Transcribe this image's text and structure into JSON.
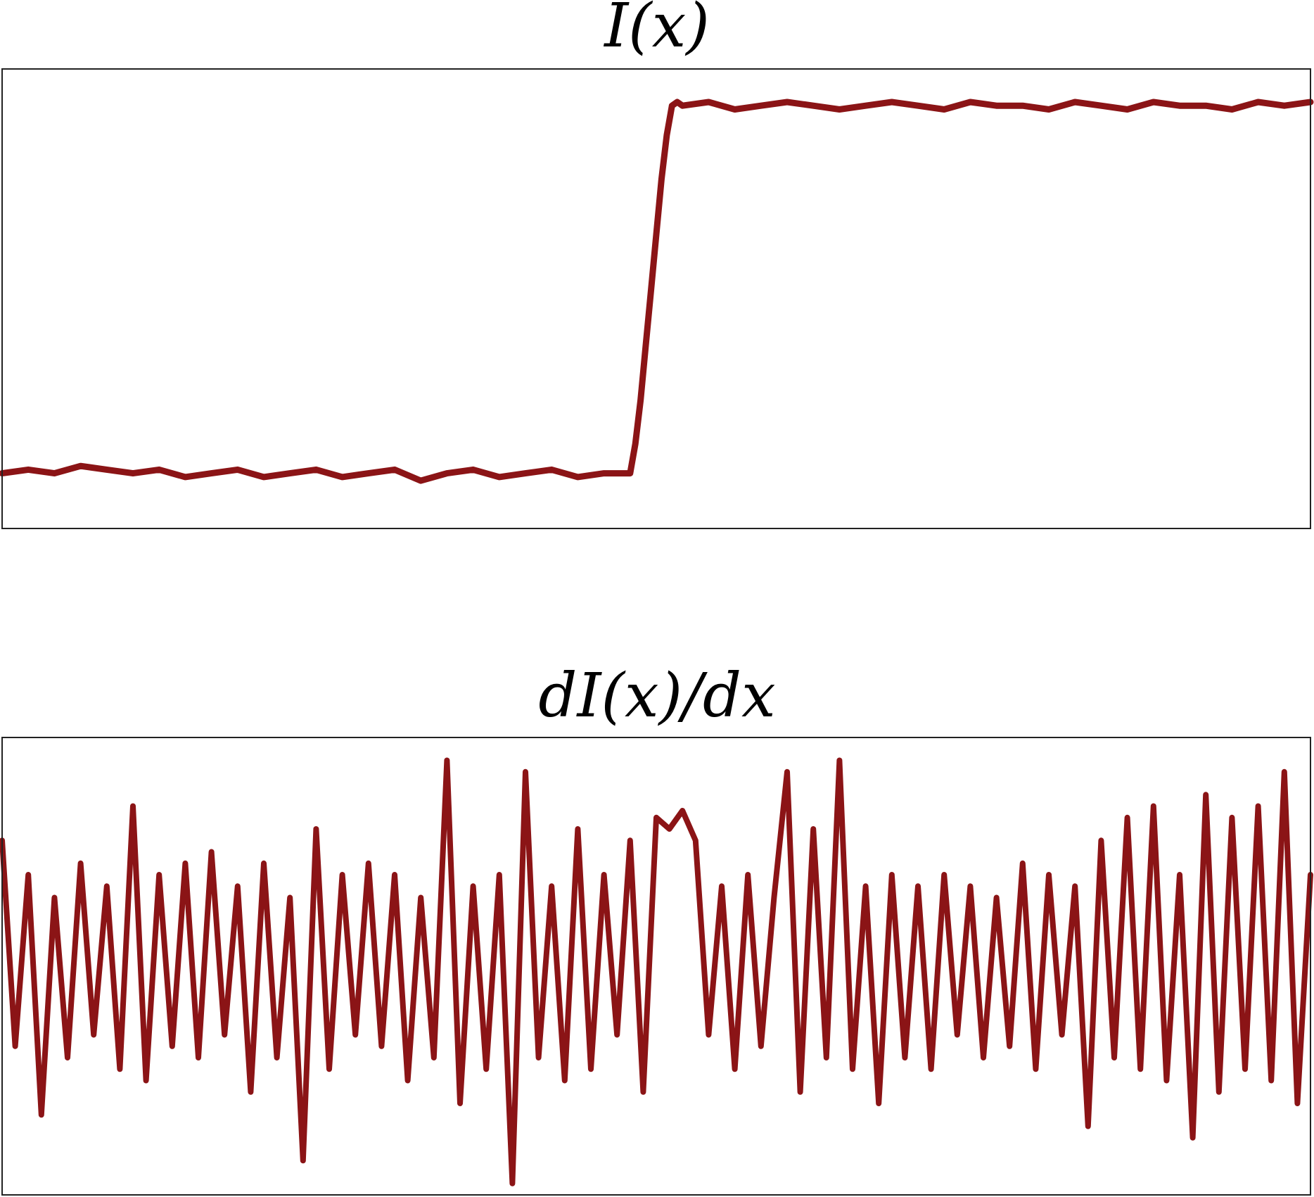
{
  "line_color": "#8b1416",
  "chart_data": [
    {
      "type": "line",
      "title": "I(x)",
      "xlabel": "",
      "ylabel": "",
      "grid": false,
      "xlim": [
        0,
        1
      ],
      "ylim": [
        -0.15,
        1.1
      ],
      "series": [
        {
          "x": [
            0.0,
            0.02,
            0.04,
            0.06,
            0.08,
            0.1,
            0.12,
            0.14,
            0.16,
            0.18,
            0.2,
            0.22,
            0.24,
            0.26,
            0.28,
            0.3,
            0.32,
            0.34,
            0.36,
            0.38,
            0.4,
            0.42,
            0.44,
            0.46,
            0.48,
            0.484,
            0.488,
            0.492,
            0.496,
            0.5,
            0.504,
            0.508,
            0.512,
            0.516,
            0.52,
            0.54,
            0.56,
            0.58,
            0.6,
            0.62,
            0.64,
            0.66,
            0.68,
            0.7,
            0.72,
            0.74,
            0.76,
            0.78,
            0.8,
            0.82,
            0.84,
            0.86,
            0.88,
            0.9,
            0.92,
            0.94,
            0.96,
            0.98,
            1.0
          ],
          "y": [
            0.0,
            0.01,
            0.0,
            0.02,
            0.01,
            0.0,
            0.01,
            -0.01,
            0.0,
            0.01,
            -0.01,
            0.0,
            0.01,
            -0.01,
            0.0,
            0.01,
            -0.02,
            0.0,
            0.01,
            -0.01,
            0.0,
            0.01,
            -0.01,
            0.0,
            0.0,
            0.08,
            0.2,
            0.35,
            0.5,
            0.65,
            0.8,
            0.92,
            1.0,
            1.01,
            1.0,
            1.01,
            0.99,
            1.0,
            1.01,
            1.0,
            0.99,
            1.0,
            1.01,
            1.0,
            0.99,
            1.01,
            1.0,
            1.0,
            0.99,
            1.01,
            1.0,
            0.99,
            1.01,
            1.0,
            1.0,
            0.99,
            1.01,
            1.0,
            1.01
          ]
        }
      ]
    },
    {
      "type": "line",
      "title": "dI(x)/dx",
      "xlabel": "",
      "ylabel": "",
      "grid": false,
      "xlim": [
        0,
        1
      ],
      "ylim": [
        -1.0,
        1.0
      ],
      "series": [
        {
          "x": [
            0.0,
            0.01,
            0.02,
            0.03,
            0.04,
            0.05,
            0.06,
            0.07,
            0.08,
            0.09,
            0.1,
            0.11,
            0.12,
            0.13,
            0.14,
            0.15,
            0.16,
            0.17,
            0.18,
            0.19,
            0.2,
            0.21,
            0.22,
            0.23,
            0.24,
            0.25,
            0.26,
            0.27,
            0.28,
            0.29,
            0.3,
            0.31,
            0.32,
            0.33,
            0.34,
            0.35,
            0.36,
            0.37,
            0.38,
            0.39,
            0.4,
            0.41,
            0.42,
            0.43,
            0.44,
            0.45,
            0.46,
            0.47,
            0.48,
            0.49,
            0.5,
            0.51,
            0.52,
            0.53,
            0.54,
            0.55,
            0.56,
            0.57,
            0.58,
            0.59,
            0.6,
            0.61,
            0.62,
            0.63,
            0.64,
            0.65,
            0.66,
            0.67,
            0.68,
            0.69,
            0.7,
            0.71,
            0.72,
            0.73,
            0.74,
            0.75,
            0.76,
            0.77,
            0.78,
            0.79,
            0.8,
            0.81,
            0.82,
            0.83,
            0.84,
            0.85,
            0.86,
            0.87,
            0.88,
            0.89,
            0.9,
            0.91,
            0.92,
            0.93,
            0.94,
            0.95,
            0.96,
            0.97,
            0.98,
            0.99,
            1.0
          ],
          "y": [
            0.55,
            -0.35,
            0.4,
            -0.65,
            0.3,
            -0.4,
            0.45,
            -0.3,
            0.35,
            -0.45,
            0.7,
            -0.5,
            0.4,
            -0.35,
            0.45,
            -0.4,
            0.5,
            -0.3,
            0.35,
            -0.55,
            0.45,
            -0.4,
            0.3,
            -0.85,
            0.6,
            -0.45,
            0.4,
            -0.3,
            0.45,
            -0.35,
            0.4,
            -0.5,
            0.3,
            -0.4,
            0.9,
            -0.6,
            0.35,
            -0.45,
            0.4,
            -0.95,
            0.85,
            -0.4,
            0.35,
            -0.5,
            0.6,
            -0.45,
            0.4,
            -0.3,
            0.55,
            -0.55,
            0.65,
            0.6,
            0.68,
            0.55,
            -0.3,
            0.35,
            -0.45,
            0.4,
            -0.35,
            0.3,
            0.85,
            -0.55,
            0.6,
            -0.4,
            0.9,
            -0.45,
            0.35,
            -0.6,
            0.4,
            -0.4,
            0.35,
            -0.45,
            0.4,
            -0.3,
            0.35,
            -0.4,
            0.3,
            -0.35,
            0.45,
            -0.45,
            0.4,
            -0.3,
            0.35,
            -0.7,
            0.55,
            -0.4,
            0.65,
            -0.45,
            0.7,
            -0.5,
            0.4,
            -0.75,
            0.75,
            -0.55,
            0.65,
            -0.45,
            0.7,
            -0.5,
            0.85,
            -0.6,
            0.4
          ]
        }
      ]
    }
  ]
}
